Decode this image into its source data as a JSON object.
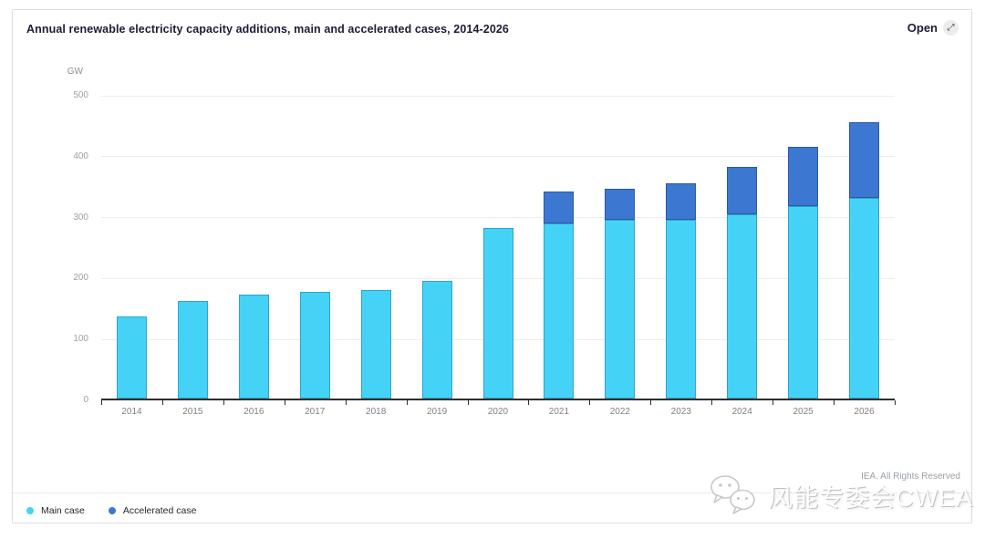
{
  "header": {
    "title": "Annual renewable electricity capacity additions, main and accelerated cases, 2014-2026",
    "open_label": "Open",
    "open_icon": "⤢"
  },
  "chart_data": {
    "type": "bar",
    "stacked": true,
    "title": "Annual renewable electricity capacity additions, main and accelerated cases, 2014-2026",
    "unit": "GW",
    "xlabel": "",
    "ylabel": "GW",
    "ylim": [
      0,
      500
    ],
    "yticks": [
      0,
      100,
      200,
      300,
      400,
      500
    ],
    "grid": true,
    "legend_position": "bottom-left",
    "categories": [
      "2014",
      "2015",
      "2016",
      "2017",
      "2018",
      "2019",
      "2020",
      "2021",
      "2022",
      "2023",
      "2024",
      "2025",
      "2026"
    ],
    "series": [
      {
        "name": "Main case",
        "color": "#45D2F7",
        "border_color": "#2FA3CC",
        "values": [
          135,
          160,
          170,
          175,
          178,
          193,
          280,
          288,
          293,
          293,
          303,
          316,
          330
        ]
      },
      {
        "name": "Accelerated case",
        "color": "#3C78D2",
        "border_color": "#2B5AA0",
        "values": [
          0,
          0,
          0,
          0,
          0,
          0,
          0,
          52,
          52,
          60,
          77,
          97,
          123
        ]
      }
    ]
  },
  "footer": {
    "rights": "IEA. All Rights Reserved",
    "watermark": "风能专委会CWEA"
  }
}
